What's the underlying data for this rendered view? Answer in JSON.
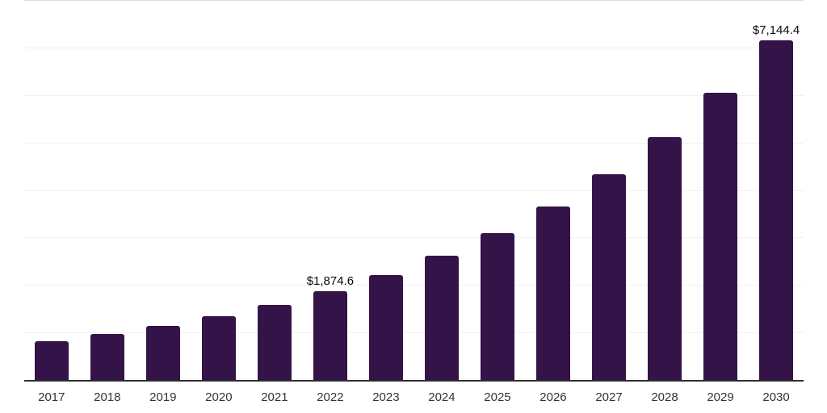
{
  "chart_data": {
    "type": "bar",
    "title": "",
    "xlabel": "",
    "ylabel": "",
    "categories": [
      "2017",
      "2018",
      "2019",
      "2020",
      "2021",
      "2022",
      "2023",
      "2024",
      "2025",
      "2026",
      "2027",
      "2028",
      "2029",
      "2030"
    ],
    "values": [
      812,
      960,
      1135,
      1341,
      1586,
      1874.6,
      2216,
      2619,
      3096,
      3660,
      4327,
      5114,
      6046,
      7144.4
    ],
    "point_labels": [
      "",
      "",
      "",
      "",
      "",
      "$1,874.6",
      "",
      "",
      "",
      "",
      "",
      "",
      "",
      "$7,144.4"
    ],
    "ylim": [
      0,
      8000
    ],
    "gridline_step": 1000,
    "grid": "horizontal",
    "y_tick_labels_visible": false,
    "legend": "none"
  },
  "colors": {
    "bar": "#341349",
    "axis_line": "#2d2d2d",
    "gridline": "#f1f1f1",
    "top_gridline": "#dcdcdc",
    "value_label_text": "#0a0a0a",
    "tick_label_text": "#333333",
    "background": "#ffffff"
  }
}
